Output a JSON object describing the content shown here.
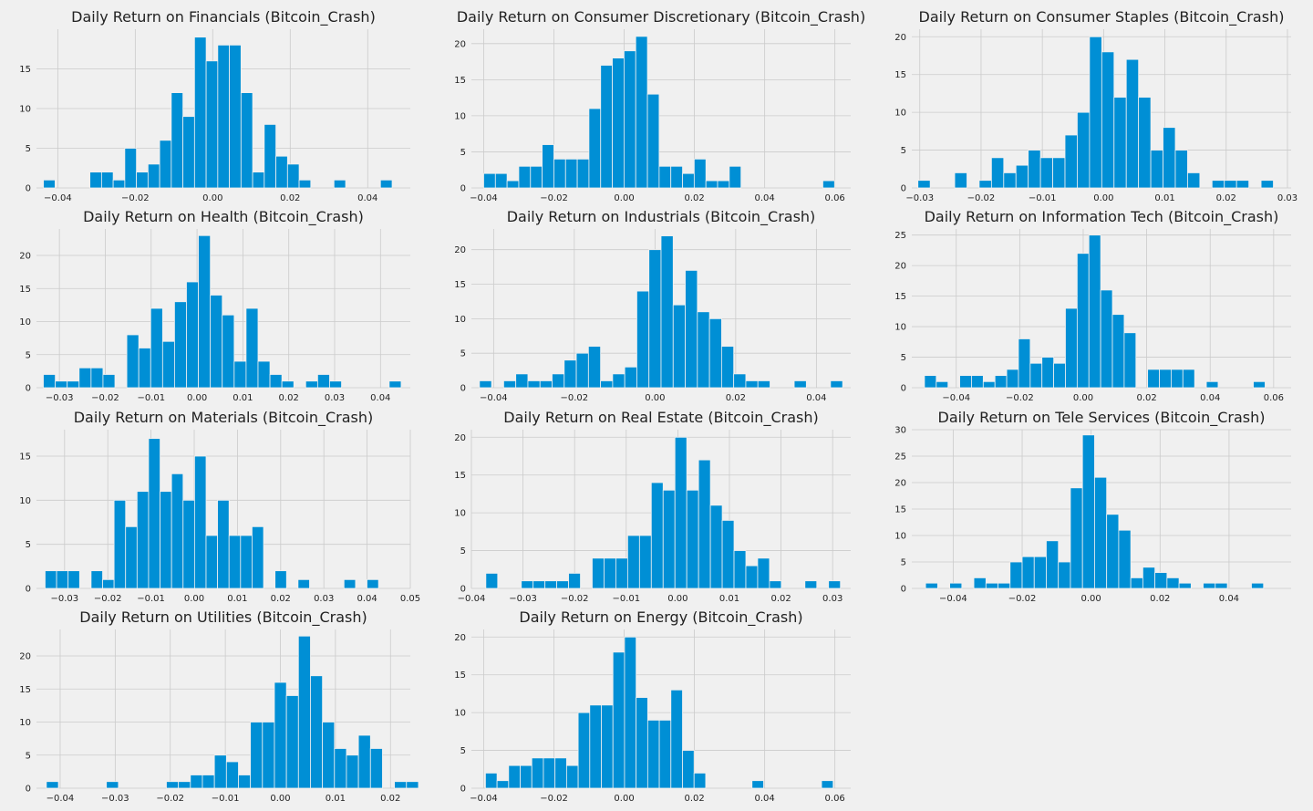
{
  "chart_data": [
    {
      "type": "bar",
      "title": "Daily Return on Financials (Bitcoin_Crash)",
      "bin_start": -0.0437,
      "bin_width": 0.003,
      "values": [
        1,
        0,
        0,
        0,
        2,
        2,
        1,
        5,
        2,
        3,
        6,
        12,
        9,
        19,
        16,
        18,
        18,
        12,
        2,
        8,
        4,
        3,
        1,
        0,
        0,
        1,
        0,
        0,
        0,
        1
      ],
      "xlim": [
        -0.0455,
        0.051
      ],
      "ylim": [
        0,
        20
      ],
      "xticks": [
        -0.04,
        -0.02,
        0.0,
        0.02,
        0.04
      ],
      "xtick_labels": [
        "−0.04",
        "−0.02",
        "0.00",
        "0.02",
        "0.04"
      ],
      "yticks": [
        0,
        5,
        10,
        15
      ],
      "grid": true
    },
    {
      "type": "bar",
      "title": "Daily Return on Consumer Discretionary (Bitcoin_Crash)",
      "bin_start": -0.04,
      "bin_width": 0.00333,
      "values": [
        2,
        2,
        1,
        3,
        3,
        6,
        4,
        4,
        4,
        11,
        17,
        18,
        19,
        21,
        13,
        3,
        3,
        2,
        4,
        1,
        1,
        3,
        0,
        0,
        0,
        0,
        0,
        0,
        0,
        1
      ],
      "xlim": [
        -0.0435,
        0.0645
      ],
      "ylim": [
        0,
        22
      ],
      "xticks": [
        -0.04,
        -0.02,
        0.0,
        0.02,
        0.04,
        0.06
      ],
      "xtick_labels": [
        "−0.04",
        "−0.02",
        "0.00",
        "0.02",
        "0.04",
        "0.06"
      ],
      "yticks": [
        0,
        5,
        10,
        15,
        20
      ],
      "grid": true
    },
    {
      "type": "bar",
      "title": "Daily Return on Consumer Staples (Bitcoin_Crash)",
      "bin_start": -0.0303,
      "bin_width": 0.002,
      "values": [
        1,
        0,
        0,
        2,
        0,
        1,
        4,
        2,
        3,
        5,
        4,
        4,
        7,
        10,
        20,
        18,
        12,
        17,
        12,
        5,
        8,
        5,
        2,
        0,
        1,
        1,
        1,
        0,
        1,
        0
      ],
      "xlim": [
        -0.0313,
        0.0306
      ],
      "ylim": [
        0,
        21
      ],
      "xticks": [
        -0.03,
        -0.02,
        -0.01,
        0.0,
        0.01,
        0.02,
        0.03
      ],
      "xtick_labels": [
        "−0.03",
        "−0.02",
        "−0.01",
        "0.00",
        "0.01",
        "0.02",
        "0.03"
      ],
      "yticks": [
        0,
        5,
        10,
        15,
        20
      ],
      "grid": true
    },
    {
      "type": "bar",
      "title": "Daily Return on Health (Bitcoin_Crash)",
      "bin_start": -0.0335,
      "bin_width": 0.0026,
      "values": [
        2,
        1,
        1,
        3,
        3,
        2,
        0,
        8,
        6,
        12,
        7,
        13,
        16,
        23,
        14,
        11,
        4,
        12,
        4,
        2,
        1,
        0,
        1,
        2,
        1,
        0,
        0,
        0,
        0,
        1
      ],
      "xlim": [
        -0.035,
        0.0465
      ],
      "ylim": [
        0,
        24
      ],
      "xticks": [
        -0.03,
        -0.02,
        -0.01,
        0.0,
        0.01,
        0.02,
        0.03,
        0.04
      ],
      "xtick_labels": [
        "−0.03",
        "−0.02",
        "−0.01",
        "0.00",
        "0.01",
        "0.02",
        "0.03",
        "0.04"
      ],
      "yticks": [
        0,
        5,
        10,
        15,
        20
      ],
      "grid": true
    },
    {
      "type": "bar",
      "title": "Daily Return on Industrials (Bitcoin_Crash)",
      "bin_start": -0.0435,
      "bin_width": 0.003,
      "values": [
        1,
        0,
        1,
        2,
        1,
        1,
        2,
        4,
        5,
        6,
        1,
        2,
        3,
        14,
        20,
        22,
        12,
        17,
        11,
        10,
        6,
        2,
        1,
        1,
        0,
        0,
        1,
        0,
        0,
        1
      ],
      "xlim": [
        -0.0455,
        0.0485
      ],
      "ylim": [
        0,
        23
      ],
      "xticks": [
        -0.04,
        -0.02,
        0.0,
        0.02,
        0.04
      ],
      "xtick_labels": [
        "−0.04",
        "−0.02",
        "0.00",
        "0.02",
        "0.04"
      ],
      "yticks": [
        0,
        5,
        10,
        15,
        20
      ],
      "grid": true
    },
    {
      "type": "bar",
      "title": "Daily Return on Information Tech (Bitcoin_Crash)",
      "bin_start": -0.05,
      "bin_width": 0.0037,
      "values": [
        2,
        1,
        0,
        2,
        2,
        1,
        2,
        3,
        8,
        4,
        5,
        4,
        13,
        22,
        25,
        16,
        12,
        9,
        0,
        3,
        3,
        3,
        3,
        0,
        1,
        0,
        0,
        0,
        1,
        0
      ],
      "xlim": [
        -0.054,
        0.0655
      ],
      "ylim": [
        0,
        26
      ],
      "xticks": [
        -0.04,
        -0.02,
        0.0,
        0.02,
        0.04,
        0.06
      ],
      "xtick_labels": [
        "−0.04",
        "−0.02",
        "0.00",
        "0.02",
        "0.04",
        "0.06"
      ],
      "yticks": [
        0,
        5,
        10,
        15,
        20,
        25
      ],
      "grid": true
    },
    {
      "type": "bar",
      "title": "Daily Return on Materials (Bitcoin_Crash)",
      "bin_start": -0.0345,
      "bin_width": 0.00266,
      "values": [
        2,
        2,
        2,
        0,
        2,
        1,
        10,
        7,
        11,
        17,
        11,
        13,
        10,
        15,
        6,
        10,
        6,
        6,
        7,
        0,
        2,
        0,
        1,
        0,
        0,
        0,
        1,
        0,
        1,
        0
      ],
      "xlim": [
        -0.0365,
        0.05
      ],
      "ylim": [
        0,
        18
      ],
      "xticks": [
        -0.03,
        -0.02,
        -0.01,
        0.0,
        0.01,
        0.02,
        0.03,
        0.04,
        0.05
      ],
      "xtick_labels": [
        "−0.03",
        "−0.02",
        "−0.01",
        "0.00",
        "0.01",
        "0.02",
        "0.03",
        "0.04",
        "0.05"
      ],
      "yticks": [
        0,
        5,
        10,
        15
      ],
      "grid": true
    },
    {
      "type": "bar",
      "title": "Daily Return on Real Estate (Bitcoin_Crash)",
      "bin_start": -0.0372,
      "bin_width": 0.00229,
      "values": [
        2,
        0,
        0,
        1,
        1,
        1,
        1,
        2,
        0,
        4,
        4,
        4,
        7,
        7,
        14,
        13,
        20,
        13,
        17,
        11,
        9,
        5,
        3,
        4,
        1,
        0,
        0,
        1,
        0,
        1
      ],
      "xlim": [
        -0.04,
        0.0335
      ],
      "ylim": [
        0,
        21
      ],
      "xticks": [
        -0.04,
        -0.03,
        -0.02,
        -0.01,
        0.0,
        0.01,
        0.02,
        0.03
      ],
      "xtick_labels": [
        "−0.04",
        "−0.03",
        "−0.02",
        "−0.01",
        "0.00",
        "0.01",
        "0.02",
        "0.03"
      ],
      "yticks": [
        0,
        5,
        10,
        15,
        20
      ],
      "grid": true
    },
    {
      "type": "bar",
      "title": "Daily Return on Tele Services (Bitcoin_Crash)",
      "bin_start": -0.048,
      "bin_width": 0.0035,
      "values": [
        1,
        0,
        1,
        0,
        2,
        1,
        1,
        5,
        6,
        6,
        9,
        5,
        19,
        29,
        21,
        14,
        11,
        2,
        4,
        3,
        2,
        1,
        0,
        1,
        1,
        0,
        0,
        1,
        0,
        0
      ],
      "xlim": [
        -0.052,
        0.058
      ],
      "ylim": [
        0,
        30
      ],
      "xticks": [
        -0.04,
        -0.02,
        0.0,
        0.02,
        0.04
      ],
      "xtick_labels": [
        "−0.04",
        "−0.02",
        "0.00",
        "0.02",
        "0.04"
      ],
      "yticks": [
        0,
        5,
        10,
        15,
        20,
        25,
        30
      ],
      "grid": true
    },
    {
      "type": "bar",
      "title": "Daily Return on Utilities (Bitcoin_Crash)",
      "bin_start": -0.0425,
      "bin_width": 0.00218,
      "values": [
        1,
        0,
        0,
        0,
        0,
        1,
        0,
        0,
        0,
        0,
        1,
        1,
        2,
        2,
        5,
        4,
        2,
        10,
        10,
        16,
        14,
        23,
        17,
        10,
        6,
        5,
        8,
        6,
        0,
        1,
        1
      ],
      "xlim": [
        -0.0443,
        0.0236
      ],
      "ylim": [
        0,
        24
      ],
      "xticks": [
        -0.04,
        -0.03,
        -0.02,
        -0.01,
        0.0,
        0.01,
        0.02
      ],
      "xtick_labels": [
        "−0.04",
        "−0.03",
        "−0.02",
        "−0.01",
        "0.00",
        "0.01",
        "0.02"
      ],
      "yticks": [
        0,
        5,
        10,
        15,
        20
      ],
      "grid": true
    },
    {
      "type": "bar",
      "title": "Daily Return on Energy (Bitcoin_Crash)",
      "bin_start": -0.0395,
      "bin_width": 0.0033,
      "values": [
        2,
        1,
        3,
        3,
        4,
        4,
        4,
        3,
        10,
        11,
        11,
        18,
        20,
        12,
        9,
        9,
        13,
        5,
        2,
        0,
        0,
        0,
        0,
        1,
        0,
        0,
        0,
        0,
        0,
        1
      ],
      "xlim": [
        -0.0435,
        0.0645
      ],
      "ylim": [
        0,
        21
      ],
      "xticks": [
        -0.04,
        -0.02,
        0.0,
        0.02,
        0.04,
        0.06
      ],
      "xtick_labels": [
        "−0.04",
        "−0.02",
        "0.00",
        "0.02",
        "0.04",
        "0.06"
      ],
      "yticks": [
        0,
        5,
        10,
        15,
        20
      ],
      "grid": true
    }
  ]
}
